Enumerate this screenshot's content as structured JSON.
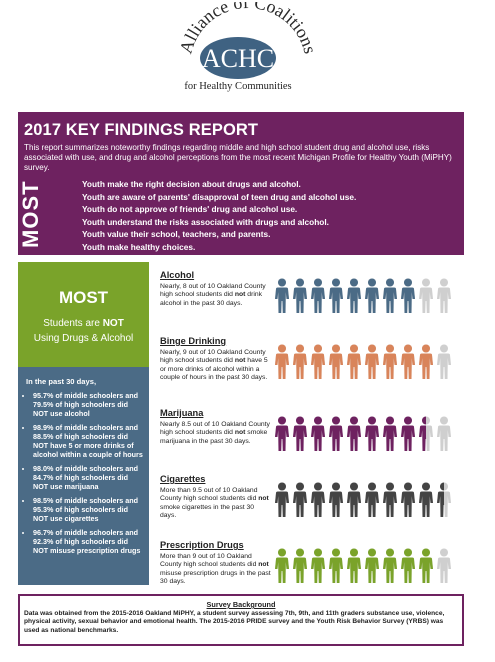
{
  "logo": {
    "arc_text": "Alliance of Coalitions",
    "acronym": "ACHC",
    "tagline": "for Healthy Communities"
  },
  "banner": {
    "title": "2017 KEY FINDINGS REPORT",
    "intro": "This report summarizes noteworthy findings regarding middle and high school student drug and alcohol use, risks associated with use, and drug and alcohol perceptions from the most recent Michigan Profile for Healthy Youth (MiPHY) survey.",
    "most_label": "MOST",
    "findings": [
      "Youth make the right decision about drugs and alcohol.",
      "Youth are aware of parents' disapproval of teen drug and alcohol use.",
      "Youth do not approve of friends' drug and alcohol use.",
      "Youth understand the risks associated with drugs and alcohol.",
      "Youth value their school, teachers, and parents.",
      "Youth make healthy choices."
    ]
  },
  "green_box": {
    "big": "MOST",
    "line1_pre": "Students are ",
    "line1_emph": "NOT",
    "line2": "Using Drugs & Alcohol"
  },
  "blue_box": {
    "heading": "In the past 30 days,",
    "items": [
      "95.7% of middle schoolers and 79.5% of high schoolers did NOT use alcohol",
      "98.9% of middle schoolers and 88.5% of high schoolers did NOT have 5 or more drinks of alcohol within a couple of hours",
      "98.0% of middle schoolers and 84.7% of high schoolers did NOT use marijuana",
      "98.5% of middle schoolers and 95.3% of high schoolers did NOT use cigarettes",
      "96.7% of middle schoolers and 92.3% of high schoolers did NOT misuse prescription drugs"
    ]
  },
  "sections": [
    {
      "heading": "Alcohol",
      "pre": "Nearly, 8 out of 10 Oakland County high school students did ",
      "emph": "not",
      "post": " drink alcohol in the past 30 days.",
      "value": 8,
      "color": "#4b6b86"
    },
    {
      "heading": "Binge Drinking",
      "pre": "Nearly, 9 out of 10 Oakland County high school students did ",
      "emph": "not",
      "post": " have 5 or more drinks of alcohol within a couple of hours in the past 30 days.",
      "value": 9,
      "color": "#d9845a"
    },
    {
      "heading": "Marijuana",
      "pre": "Nearly 8.5 out of 10 Oakland County high school students did ",
      "emph": "not",
      "post": " smoke marijuana in the past 30 days.",
      "value": 8.5,
      "color": "#6e2260"
    },
    {
      "heading": "Cigarettes",
      "pre": "More than 9.5 out of 10 Oakland County high school students did ",
      "emph": "not",
      "post": " smoke cigarettes in the past 30 days.",
      "value": 9.5,
      "color": "#444444"
    },
    {
      "heading": "Prescription Drugs",
      "pre": "More than 9 out of 10 Oakland County high school students did ",
      "emph": "not",
      "post": " misuse prescription drugs in the past 30 days.",
      "value": 9,
      "color": "#7aa32a"
    }
  ],
  "survey": {
    "heading": "Survey Background",
    "body": "Data was obtained from the 2015-2016 Oakland MiPHY, a student survey assessing 7th, 9th, and 11th graders substance use, violence, physical activity, sexual behavior and emotional health. The 2015-2016 PRIDE survey and the Youth Risk Behavior Survey (YRBS) was used as national benchmarks."
  },
  "colors": {
    "purple": "#6e2260",
    "green": "#7aa32a",
    "blue": "#4b6b86",
    "inactive_person": "#cfcfcf"
  }
}
